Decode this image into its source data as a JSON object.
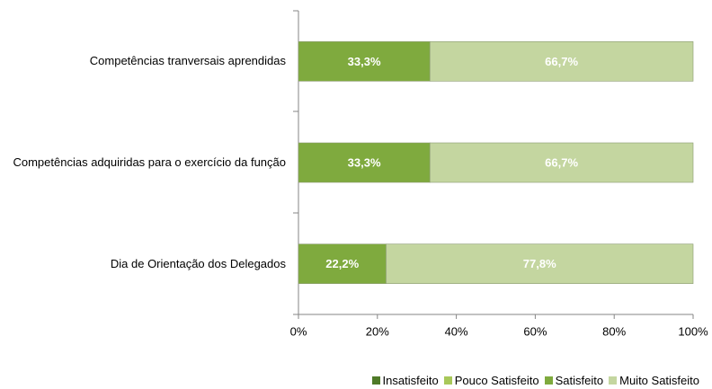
{
  "chart_data": {
    "type": "stacked-bar-horizontal",
    "categories": [
      "Competências tranversais aprendidas",
      "Competências adquiridas para o exercício da função",
      "Dia de Orientação dos Delegados"
    ],
    "series": [
      {
        "name": "Insatisfeito",
        "color": "#4f7a28",
        "values": [
          0,
          0,
          0
        ]
      },
      {
        "name": "Pouco Satisfeito",
        "color": "#a8c85a",
        "values": [
          0,
          0,
          0
        ]
      },
      {
        "name": "Satisfeito",
        "color": "#7faa3e",
        "values": [
          33.3,
          33.3,
          22.2
        ],
        "value_labels": [
          "33,3%",
          "33,3%",
          "22,2%"
        ]
      },
      {
        "name": "Muito Satisfeito",
        "color": "#c4d6a0",
        "values": [
          66.7,
          66.7,
          77.8
        ],
        "value_labels": [
          "66,7%",
          "66,7%",
          "77,8%"
        ]
      }
    ],
    "xlim": [
      0,
      100
    ],
    "xticks": [
      {
        "value": 0,
        "label": "0%"
      },
      {
        "value": 20,
        "label": "20%"
      },
      {
        "value": 40,
        "label": "40%"
      },
      {
        "value": 60,
        "label": "60%"
      },
      {
        "value": 80,
        "label": "80%"
      },
      {
        "value": 100,
        "label": "100%"
      }
    ],
    "legend": "bottom"
  }
}
